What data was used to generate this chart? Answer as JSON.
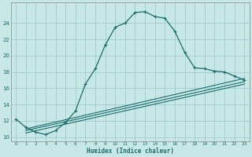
{
  "xlabel": "Humidex (Indice chaleur)",
  "bg_color": "#c8e8e8",
  "grid_color": "#a0cccc",
  "line_color": "#1a6b6b",
  "spine_color": "#888888",
  "xlim": [
    -0.5,
    23.5
  ],
  "ylim": [
    9.5,
    26.5
  ],
  "yticks": [
    10,
    12,
    14,
    16,
    18,
    20,
    22,
    24
  ],
  "xticks": [
    0,
    1,
    2,
    3,
    4,
    5,
    6,
    7,
    8,
    9,
    10,
    11,
    12,
    13,
    14,
    15,
    16,
    17,
    18,
    19,
    20,
    21,
    22,
    23
  ],
  "curve1_x": [
    0,
    1,
    2,
    3,
    4,
    5,
    6,
    7,
    8,
    9,
    10,
    11,
    12,
    13,
    14,
    15,
    16,
    17,
    18,
    19,
    20,
    21,
    22,
    23
  ],
  "curve1_y": [
    12.2,
    11.2,
    10.6,
    10.3,
    10.8,
    11.8,
    13.2,
    16.5,
    18.4,
    21.3,
    23.5,
    24.0,
    25.3,
    25.4,
    24.8,
    24.6,
    23.0,
    20.4,
    18.5,
    18.4,
    18.1,
    18.0,
    17.5,
    17.0
  ],
  "line2_x": [
    1,
    23
  ],
  "line2_y": [
    11.0,
    17.2
  ],
  "line3_x": [
    1,
    23
  ],
  "line3_y": [
    10.5,
    16.5
  ],
  "line4_x": [
    1,
    23
  ],
  "line4_y": [
    10.8,
    16.8
  ]
}
